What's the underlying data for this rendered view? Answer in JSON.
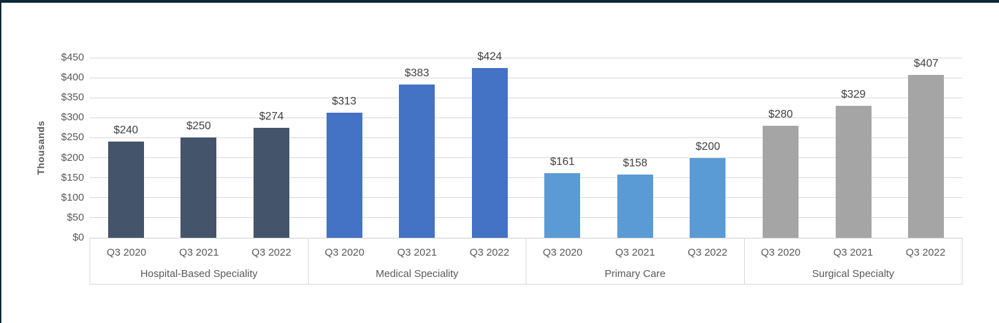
{
  "frame": {
    "border_color": "#0d2938",
    "background": "#ffffff"
  },
  "chart_data": {
    "type": "bar",
    "title": "",
    "xlabel": "",
    "ylabel": "Thousands",
    "legend": "none",
    "grid": true,
    "y_axis": {
      "min": 0,
      "max": 450,
      "step": 50,
      "tick_labels": [
        "$0",
        "$50",
        "$100",
        "$150",
        "$200",
        "$250",
        "$300",
        "$350",
        "$400",
        "$450"
      ]
    },
    "gridline_color": "#d9d9d9",
    "axis_line_color": "#cfcfcf",
    "tick_label_color": "#595959",
    "data_label_color": "#404040",
    "groups": [
      {
        "label": "Hospital-Based Speciality",
        "color": "#44546a",
        "categories": [
          "Q3 2020",
          "Q3 2021",
          "Q3 2022"
        ],
        "values": [
          240,
          250,
          274
        ],
        "data_labels": [
          "$240",
          "$250",
          "$274"
        ]
      },
      {
        "label": "Medical Speciality",
        "color": "#4472c4",
        "categories": [
          "Q3 2020",
          "Q3 2021",
          "Q3 2022"
        ],
        "values": [
          313,
          383,
          424
        ],
        "data_labels": [
          "$313",
          "$383",
          "$424"
        ]
      },
      {
        "label": "Primary Care",
        "color": "#5b9bd5",
        "categories": [
          "Q3 2020",
          "Q3 2021",
          "Q3 2022"
        ],
        "values": [
          161,
          158,
          200
        ],
        "data_labels": [
          "$161",
          "$158",
          "$200"
        ]
      },
      {
        "label": "Surgical Specialty",
        "color": "#a5a5a5",
        "categories": [
          "Q3 2020",
          "Q3 2021",
          "Q3 2022"
        ],
        "values": [
          280,
          329,
          407
        ],
        "data_labels": [
          "$280",
          "$329",
          "$407"
        ]
      }
    ]
  }
}
